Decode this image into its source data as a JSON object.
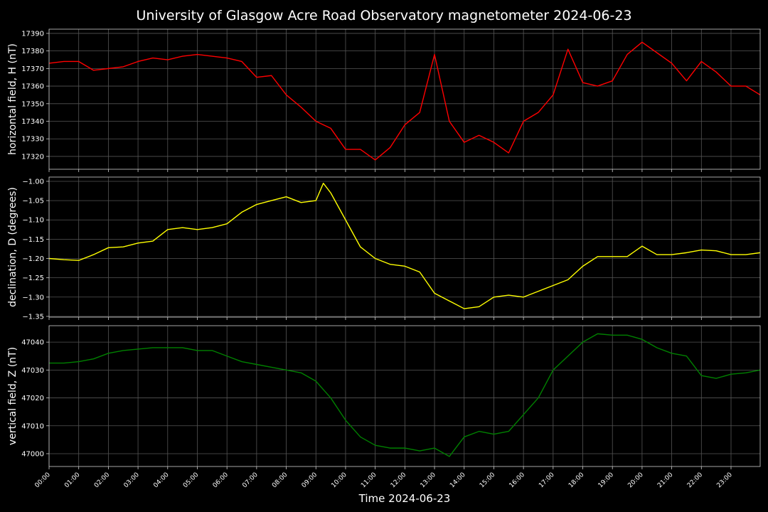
{
  "title": "University of Glasgow Acre Road Observatory magnetometer 2024-06-23",
  "chart_data": [
    {
      "type": "line",
      "ylabel": "horizontal field, H (nT)",
      "color": "#ff0000",
      "grid": true,
      "x": [
        "00:00",
        "00:30",
        "01:00",
        "01:30",
        "02:00",
        "02:30",
        "03:00",
        "03:30",
        "04:00",
        "04:30",
        "05:00",
        "05:30",
        "06:00",
        "06:30",
        "07:00",
        "07:30",
        "08:00",
        "08:30",
        "09:00",
        "09:15",
        "09:30",
        "10:00",
        "10:30",
        "11:00",
        "11:30",
        "12:00",
        "12:30",
        "13:00",
        "13:30",
        "14:00",
        "14:30",
        "15:00",
        "15:30",
        "16:00",
        "16:30",
        "17:00",
        "17:30",
        "18:00",
        "18:30",
        "19:00",
        "19:30",
        "20:00",
        "20:30",
        "21:00",
        "21:30",
        "22:00",
        "22:30",
        "23:00",
        "23:30",
        "23:59"
      ],
      "values": [
        17373,
        17374,
        17374,
        17369,
        17370,
        17371,
        17374,
        17376,
        17375,
        17377,
        17378,
        17377,
        17376,
        17374,
        17365,
        17366,
        17355,
        17348,
        17340,
        17338,
        17336,
        17324,
        17324,
        17318,
        17325,
        17338,
        17345,
        17378,
        17340,
        17328,
        17332,
        17328,
        17322,
        17340,
        17345,
        17355,
        17381,
        17362,
        17360,
        17363,
        17378,
        17385,
        17379,
        17373,
        17363,
        17374,
        17368,
        17360,
        17360,
        17355
      ],
      "ylim": [
        17312.7,
        17392.4
      ],
      "yticks": [
        17320,
        17330,
        17340,
        17350,
        17360,
        17370,
        17380,
        17390
      ]
    },
    {
      "type": "line",
      "ylabel": "declination, D (degrees)",
      "color": "#ffff00",
      "grid": true,
      "x": [
        "00:00",
        "00:30",
        "01:00",
        "01:30",
        "02:00",
        "02:30",
        "03:00",
        "03:30",
        "04:00",
        "04:30",
        "05:00",
        "05:30",
        "06:00",
        "06:30",
        "07:00",
        "07:30",
        "08:00",
        "08:30",
        "09:00",
        "09:15",
        "09:30",
        "10:00",
        "10:30",
        "11:00",
        "11:30",
        "12:00",
        "12:30",
        "13:00",
        "13:30",
        "14:00",
        "14:30",
        "15:00",
        "15:30",
        "16:00",
        "16:30",
        "17:00",
        "17:30",
        "18:00",
        "18:30",
        "19:00",
        "19:30",
        "20:00",
        "20:30",
        "21:00",
        "21:30",
        "22:00",
        "22:30",
        "23:00",
        "23:30",
        "23:59"
      ],
      "values": [
        -1.2,
        -1.203,
        -1.205,
        -1.19,
        -1.172,
        -1.17,
        -1.16,
        -1.155,
        -1.125,
        -1.12,
        -1.125,
        -1.12,
        -1.11,
        -1.08,
        -1.06,
        -1.05,
        -1.04,
        -1.055,
        -1.05,
        -1.005,
        -1.03,
        -1.1,
        -1.17,
        -1.2,
        -1.215,
        -1.22,
        -1.235,
        -1.29,
        -1.31,
        -1.33,
        -1.325,
        -1.3,
        -1.295,
        -1.3,
        -1.285,
        -1.27,
        -1.255,
        -1.22,
        -1.195,
        -1.195,
        -1.195,
        -1.168,
        -1.19,
        -1.19,
        -1.185,
        -1.178,
        -1.18,
        -1.19,
        -1.19,
        -1.185
      ],
      "ylim": [
        -1.352,
        -0.989
      ],
      "yticks": [
        {
          "value": -1.35,
          "label": "−1.35"
        },
        {
          "value": -1.3,
          "label": "−1.30"
        },
        {
          "value": -1.25,
          "label": "−1.25"
        },
        {
          "value": -1.2,
          "label": "−1.20"
        },
        {
          "value": -1.15,
          "label": "−1.15"
        },
        {
          "value": -1.1,
          "label": "−1.10"
        },
        {
          "value": -1.05,
          "label": "−1.05"
        },
        {
          "value": -1.0,
          "label": "−1.00"
        }
      ]
    },
    {
      "type": "line",
      "ylabel": "vertical field, Z (nT)",
      "xlabel": "Time 2024-06-23",
      "color": "#008000",
      "grid": true,
      "x": [
        "00:00",
        "00:30",
        "01:00",
        "01:30",
        "02:00",
        "02:30",
        "03:00",
        "03:30",
        "04:00",
        "04:30",
        "05:00",
        "05:30",
        "06:00",
        "06:30",
        "07:00",
        "07:30",
        "08:00",
        "08:30",
        "09:00",
        "09:15",
        "09:30",
        "10:00",
        "10:30",
        "11:00",
        "11:30",
        "12:00",
        "12:30",
        "13:00",
        "13:30",
        "14:00",
        "14:30",
        "15:00",
        "15:30",
        "16:00",
        "16:30",
        "17:00",
        "17:30",
        "18:00",
        "18:30",
        "19:00",
        "19:30",
        "20:00",
        "20:30",
        "21:00",
        "21:30",
        "22:00",
        "22:30",
        "23:00",
        "23:30",
        "23:59"
      ],
      "values": [
        47032.5,
        47032.5,
        47033,
        47034,
        47036,
        47037,
        47037.5,
        47038,
        47038,
        47038,
        47037,
        47037,
        47035,
        47033,
        47032,
        47031,
        47030,
        47029,
        47026,
        47023,
        47020,
        47012,
        47006,
        47003,
        47002,
        47002,
        47001,
        47002,
        46999,
        47006,
        47008,
        47007,
        47008,
        47014,
        47020,
        47030,
        47035,
        47040,
        47043,
        47042.5,
        47042.5,
        47041,
        47038,
        47036,
        47035,
        47028,
        47027,
        47028.5,
        47029,
        47030
      ],
      "ylim": [
        46995.4,
        47045.9
      ],
      "yticks": [
        47000,
        47010,
        47020,
        47030,
        47040
      ],
      "xlim": [
        "00:00",
        "23:59"
      ],
      "xticks": [
        "00:00",
        "01:00",
        "02:00",
        "03:00",
        "04:00",
        "05:00",
        "06:00",
        "07:00",
        "08:00",
        "09:00",
        "10:00",
        "11:00",
        "12:00",
        "13:00",
        "14:00",
        "15:00",
        "16:00",
        "17:00",
        "18:00",
        "19:00",
        "20:00",
        "21:00",
        "22:00",
        "23:00"
      ]
    }
  ]
}
